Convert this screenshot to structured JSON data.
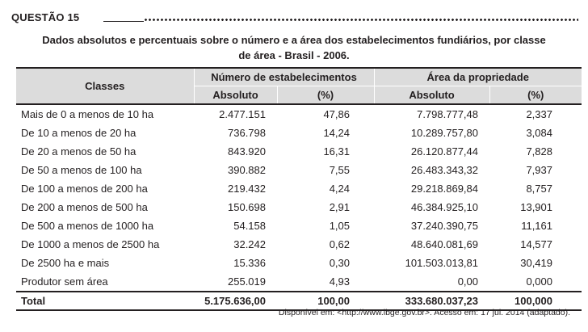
{
  "question": {
    "label": "QUESTÃO 15"
  },
  "caption": {
    "line1": "Dados absolutos e percentuais sobre o número e a área dos estabelecimentos fundiários, por classe",
    "line2": "de área - Brasil - 2006."
  },
  "table": {
    "header": {
      "classes": "Classes",
      "group_establishments": "Número de estabelecimentos",
      "group_area": "Área da propriedade",
      "absolute": "Absoluto",
      "percent": "(%)"
    },
    "rows": [
      {
        "classe": "Mais de 0 a menos de 10 ha",
        "estab_abs": "2.477.151",
        "estab_pct": "47,86",
        "area_abs": "7.798.777,48",
        "area_pct": "2,337"
      },
      {
        "classe": "De 10 a menos de 20 ha",
        "estab_abs": "736.798",
        "estab_pct": "14,24",
        "area_abs": "10.289.757,80",
        "area_pct": "3,084"
      },
      {
        "classe": "De 20 a menos de 50 ha",
        "estab_abs": "843.920",
        "estab_pct": "16,31",
        "area_abs": "26.120.877,44",
        "area_pct": "7,828"
      },
      {
        "classe": "De 50 a menos de 100 ha",
        "estab_abs": "390.882",
        "estab_pct": "7,55",
        "area_abs": "26.483.343,32",
        "area_pct": "7,937"
      },
      {
        "classe": "De 100 a menos de 200 ha",
        "estab_abs": "219.432",
        "estab_pct": "4,24",
        "area_abs": "29.218.869,84",
        "area_pct": "8,757"
      },
      {
        "classe": "De 200 a menos de 500 ha",
        "estab_abs": "150.698",
        "estab_pct": "2,91",
        "area_abs": "46.384.925,10",
        "area_pct": "13,901"
      },
      {
        "classe": "De 500 a menos de 1000 ha",
        "estab_abs": "54.158",
        "estab_pct": "1,05",
        "area_abs": "37.240.390,75",
        "area_pct": "11,161"
      },
      {
        "classe": "De 1000 a menos de 2500 ha",
        "estab_abs": "32.242",
        "estab_pct": "0,62",
        "area_abs": "48.640.081,69",
        "area_pct": "14,577"
      },
      {
        "classe": "De 2500 ha e mais",
        "estab_abs": "15.336",
        "estab_pct": "0,30",
        "area_abs": "101.503.013,81",
        "area_pct": "30,419"
      },
      {
        "classe": "Produtor sem área",
        "estab_abs": "255.019",
        "estab_pct": "4,93",
        "area_abs": "0,00",
        "area_pct": "0,000"
      }
    ],
    "total": {
      "classe": "Total",
      "estab_abs": "5.175.636,00",
      "estab_pct": "100,00",
      "area_abs": "333.680.037,23",
      "area_pct": "100,000"
    }
  },
  "source": "Disponível em: <http://www.ibge.gov.br>. Acesso em: 17 jul. 2014 (adaptado)."
}
